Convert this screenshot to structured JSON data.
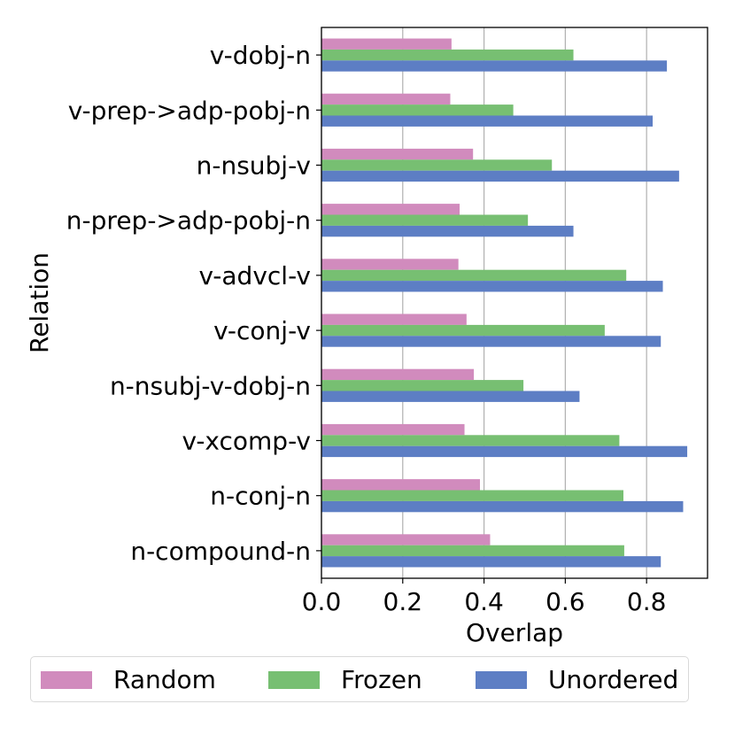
{
  "chart_data": {
    "type": "bar",
    "orientation": "horizontal",
    "xlabel": "Overlap",
    "ylabel": "Relation",
    "xlim": [
      0.0,
      0.95
    ],
    "xticks": [
      0.0,
      0.2,
      0.4,
      0.6,
      0.8
    ],
    "xtick_labels": [
      "0.0",
      "0.2",
      "0.4",
      "0.6",
      "0.8"
    ],
    "grid": "vertical",
    "legend_position": "bottom",
    "categories": [
      "v-dobj-n",
      "v-prep->adp-pobj-n",
      "n-nsubj-v",
      "n-prep->adp-pobj-n",
      "v-advcl-v",
      "v-conj-v",
      "n-nsubj-v-dobj-n",
      "v-xcomp-v",
      "n-conj-n",
      "n-compound-n"
    ],
    "series": [
      {
        "name": "Random",
        "color": "#d18bbd",
        "values": [
          0.32,
          0.317,
          0.373,
          0.34,
          0.337,
          0.357,
          0.375,
          0.352,
          0.39,
          0.415
        ]
      },
      {
        "name": "Frozen",
        "color": "#77bf72",
        "values": [
          0.62,
          0.472,
          0.567,
          0.508,
          0.75,
          0.697,
          0.497,
          0.733,
          0.743,
          0.745
        ]
      },
      {
        "name": "Unordered",
        "color": "#5d7ec4",
        "values": [
          0.85,
          0.815,
          0.88,
          0.62,
          0.84,
          0.835,
          0.635,
          0.9,
          0.89,
          0.835
        ]
      }
    ]
  }
}
